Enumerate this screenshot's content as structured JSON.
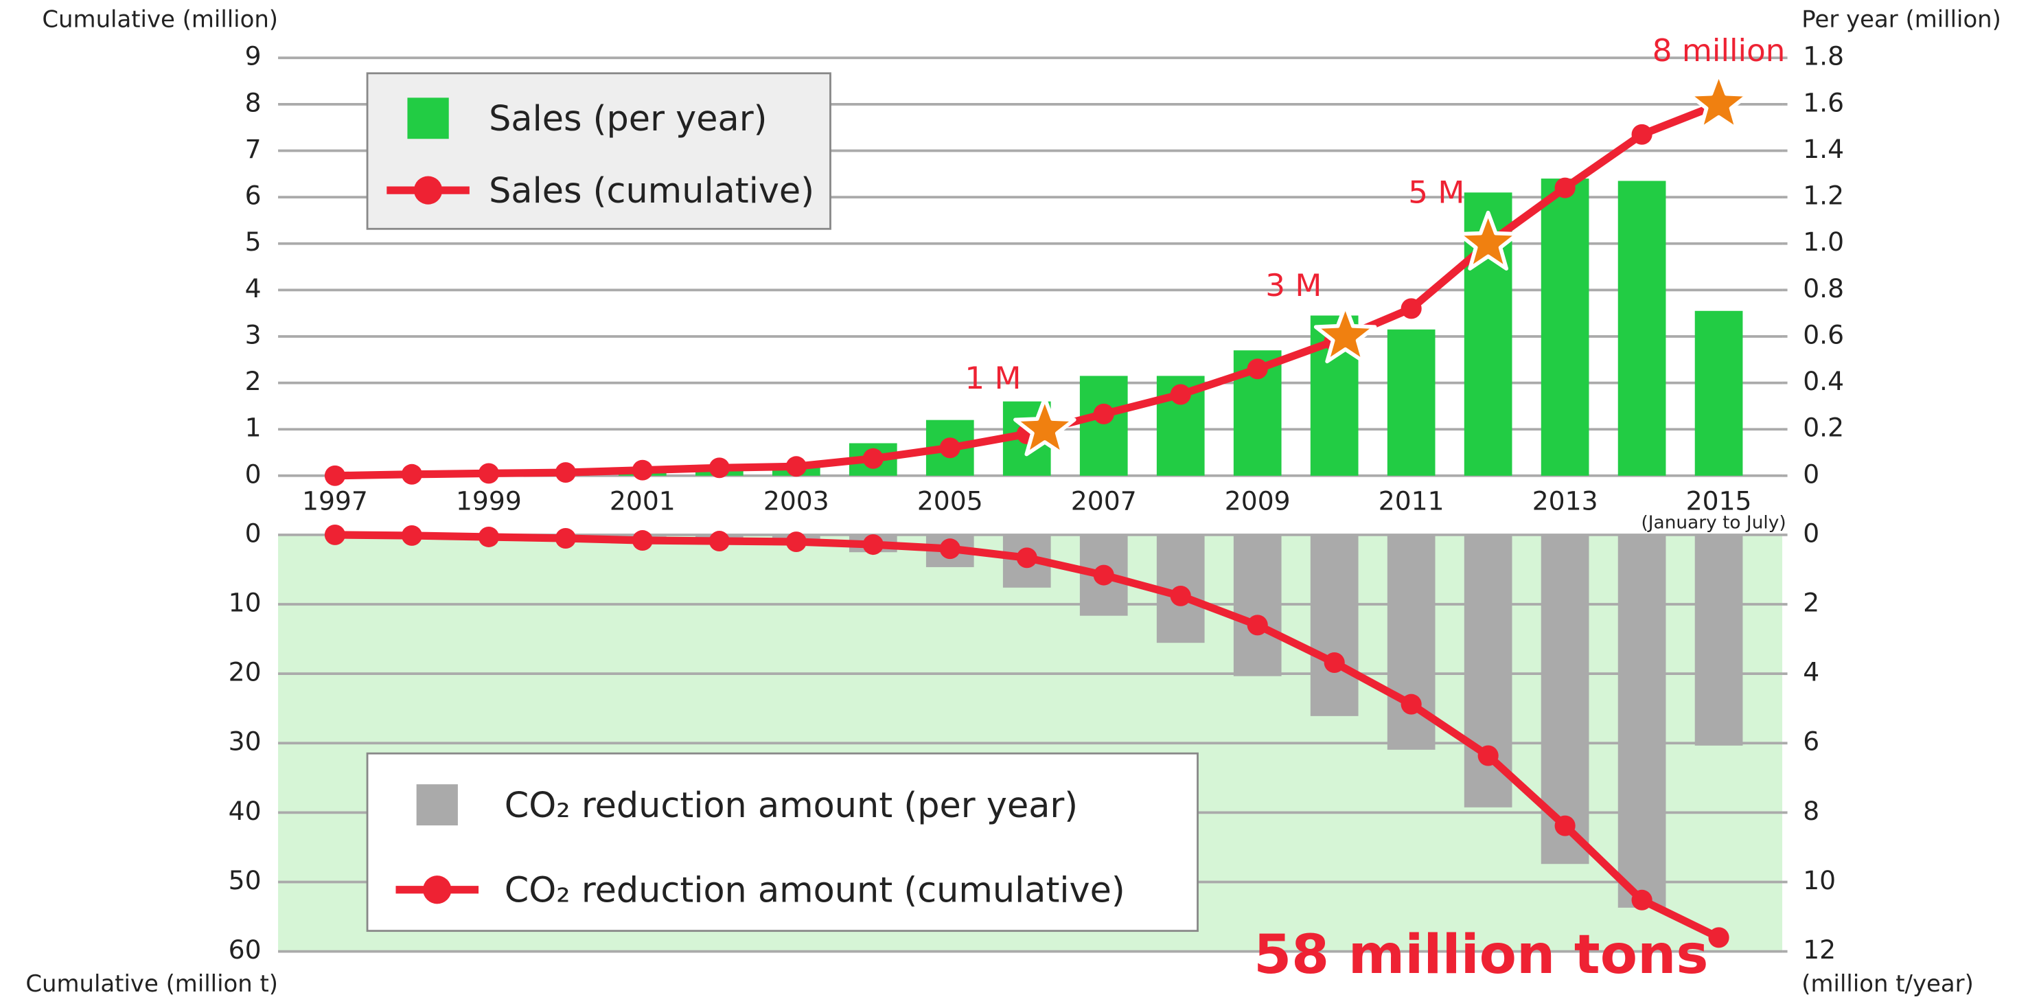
{
  "chart_data": [
    {
      "type": "bar_line",
      "ylabel": "Cumulative (million)",
      "y2label": "Per year (million)",
      "categories": [
        "1997",
        null,
        "1999",
        null,
        "2001",
        null,
        "2003",
        null,
        "2005",
        null,
        "2007",
        null,
        "2009",
        null,
        "2011",
        null,
        "2013",
        null,
        "2015"
      ],
      "note": "(January to July)",
      "series": [
        {
          "name": "Sales (per year)",
          "type": "bar",
          "axis": "y2",
          "color": "#22cc44",
          "values": [
            0.0,
            0.0,
            0.01,
            0.01,
            0.03,
            0.04,
            0.04,
            0.14,
            0.24,
            0.32,
            0.43,
            0.43,
            0.54,
            0.69,
            0.63,
            1.22,
            1.28,
            1.27,
            0.71
          ]
        },
        {
          "name": "Sales (cumulative)",
          "type": "line",
          "color": "#ee2233",
          "values": [
            0.0,
            0.03,
            0.05,
            0.07,
            0.12,
            0.17,
            0.2,
            0.37,
            0.6,
            0.9,
            1.33,
            1.75,
            2.3,
            2.9,
            3.6,
            5.0,
            6.2,
            7.35,
            8.0
          ]
        }
      ],
      "ylim": [
        0,
        9
      ],
      "yticks": [
        0,
        1,
        2,
        3,
        4,
        5,
        6,
        7,
        8,
        9
      ],
      "y2lim": [
        0,
        1.8
      ],
      "y2ticks": [
        0,
        0.2,
        0.4,
        0.6,
        0.8,
        {
          "value": 1,
          "label": "1.0"
        },
        1.2,
        1.4,
        1.6,
        1.8
      ],
      "grid": true,
      "legend": "top-left",
      "legend_background": "#eeeeee",
      "inverted": false,
      "annotations": [
        {
          "text": "1 M",
          "value": 1
        },
        {
          "text": "3 M",
          "value": 3
        },
        {
          "text": "5 M",
          "value": 5
        },
        {
          "text": "8 million",
          "value": 8
        }
      ],
      "marker_color": "#f08010"
    },
    {
      "type": "bar_line",
      "ylabel": "Cumulative (million t)",
      "y2label": "(million t/year)",
      "series": [
        {
          "name": "CO₂ reduction amount (per year)",
          "type": "bar",
          "axis": "y2",
          "color": "#aaaaaa",
          "values": [
            0.0,
            0.0,
            0.0,
            0.0,
            0.05,
            0.1,
            0.3,
            0.5,
            0.93,
            1.52,
            2.33,
            3.11,
            4.07,
            5.22,
            6.19,
            7.85,
            9.48,
            10.74,
            6.07
          ]
        },
        {
          "name": "CO₂ reduction amount (cumulative)",
          "type": "line",
          "color": "#ee2233",
          "values": [
            0.0,
            0.1,
            0.3,
            0.5,
            0.8,
            0.9,
            1.0,
            1.4,
            2.0,
            3.3,
            5.8,
            8.8,
            13.0,
            18.4,
            24.4,
            31.8,
            41.9,
            52.6,
            58.0
          ]
        }
      ],
      "ylim": [
        0,
        60
      ],
      "yticks": [
        0,
        10,
        20,
        30,
        40,
        50,
        60
      ],
      "y2lim": [
        0,
        12
      ],
      "y2ticks": [
        0,
        2,
        4,
        6,
        8,
        10,
        12
      ],
      "grid": true,
      "legend": "bottom-left",
      "legend_background": "#ffffff",
      "inverted": true,
      "plot_background": "#d6f5d6",
      "annotations": [
        {
          "text": "58 million tons",
          "value": 58
        }
      ]
    }
  ]
}
